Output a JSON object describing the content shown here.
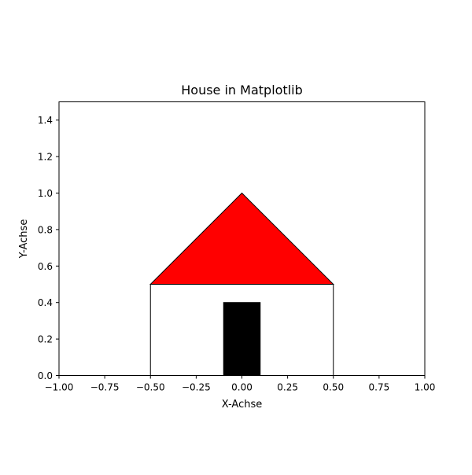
{
  "chart_data": {
    "type": "area",
    "title": "House in Matplotlib",
    "xlabel": "X-Achse",
    "ylabel": "Y-Achse",
    "xlim": [
      -1.0,
      1.0
    ],
    "ylim": [
      0.0,
      1.5
    ],
    "x_ticks": [
      -1.0,
      -0.75,
      -0.5,
      -0.25,
      0.0,
      0.25,
      0.5,
      0.75,
      1.0
    ],
    "x_tick_labels": [
      "−1.00",
      "−0.75",
      "−0.50",
      "−0.25",
      "0.00",
      "0.25",
      "0.50",
      "0.75",
      "1.00"
    ],
    "y_ticks": [
      0.0,
      0.2,
      0.4,
      0.6,
      0.8,
      1.0,
      1.2,
      1.4
    ],
    "y_tick_labels": [
      "0.0",
      "0.2",
      "0.4",
      "0.6",
      "0.8",
      "1.0",
      "1.2",
      "1.4"
    ],
    "grid": false,
    "shapes": [
      {
        "kind": "rectangle",
        "role": "house-body",
        "x": -0.5,
        "y": 0.0,
        "width": 1.0,
        "height": 0.5,
        "fill": "#ffffff",
        "stroke": "#000000"
      },
      {
        "kind": "polygon",
        "role": "roof",
        "points": [
          [
            -0.5,
            0.5
          ],
          [
            0.0,
            1.0
          ],
          [
            0.5,
            0.5
          ]
        ],
        "fill": "#ff0000",
        "stroke": "#000000"
      },
      {
        "kind": "rectangle",
        "role": "door",
        "x": -0.1,
        "y": 0.0,
        "width": 0.2,
        "height": 0.4,
        "fill": "#000000",
        "stroke": "#000000"
      }
    ]
  }
}
